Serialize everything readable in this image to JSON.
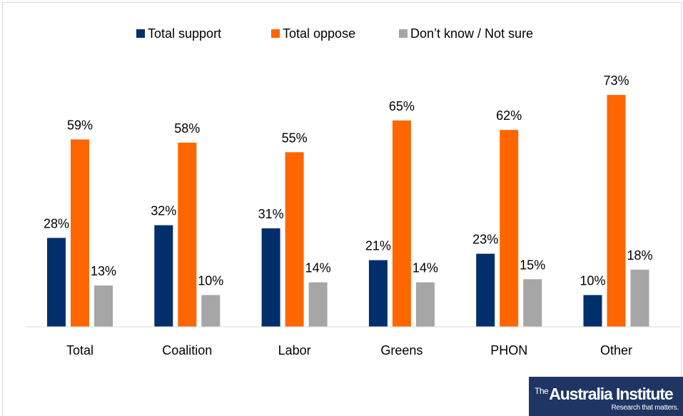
{
  "chart_data": {
    "type": "bar",
    "categories": [
      "Total",
      "Coalition",
      "Labor",
      "Greens",
      "PHON",
      "Other"
    ],
    "series": [
      {
        "name": "Total support",
        "color": "#002f6c",
        "values": [
          28,
          32,
          31,
          21,
          23,
          10
        ],
        "labels": [
          "28%",
          "32%",
          "31%",
          "21%",
          "23%",
          "10%"
        ]
      },
      {
        "name": "Total oppose",
        "color": "#ff6600",
        "values": [
          59,
          58,
          55,
          65,
          62,
          73
        ],
        "labels": [
          "59%",
          "58%",
          "55%",
          "65%",
          "62%",
          "73%"
        ]
      },
      {
        "name": "Don’t know / Not sure",
        "color": "#a6a6a6",
        "values": [
          13,
          10,
          14,
          14,
          15,
          18
        ],
        "labels": [
          "13%",
          "10%",
          "14%",
          "14%",
          "15%",
          "18%"
        ]
      }
    ],
    "ylim": [
      0,
      80
    ],
    "grid": false,
    "legend_position": "top-center",
    "title": "",
    "xlabel": "",
    "ylabel": ""
  },
  "logo": {
    "prefix": "The",
    "name": "Australia Institute",
    "tagline": "Research that matters."
  }
}
